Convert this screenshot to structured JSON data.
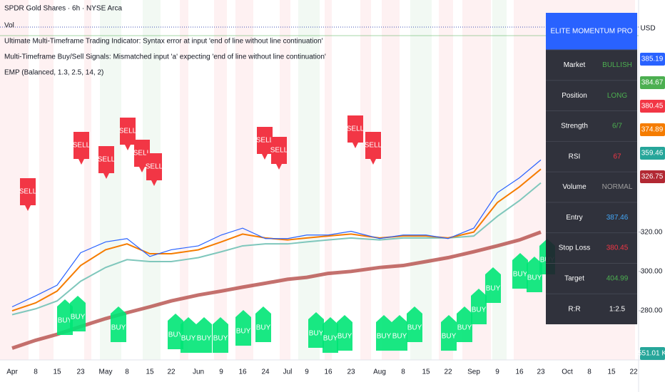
{
  "chart_data": {
    "type": "line",
    "title": "SPDR Gold Shares · 6h · NYSE Arca",
    "legend_lines": [
      "Vol",
      "Ultimate Multi-Timeframe Trading Indicator: Syntax error at input 'end of line without line continuation'",
      "Multi-Timeframe Buy/Sell Signals: Mismatched input 'a' expecting 'end of line without line continuation'",
      "EMP (Balanced, 1.3, 2.5, 14, 2)"
    ],
    "currency": "USD",
    "categories": [
      "Apr",
      "8",
      "15",
      "23",
      "May",
      "8",
      "15",
      "22",
      "Jun",
      "9",
      "16",
      "24",
      "Jul",
      "9",
      "16",
      "23",
      "Aug",
      "8",
      "15",
      "22",
      "Sep",
      "9",
      "16",
      "23",
      "Oct",
      "8",
      "15",
      "22"
    ],
    "ylim": [
      255,
      438
    ],
    "yticks": [
      {
        "value": 280,
        "label": "280.00"
      },
      {
        "value": 300,
        "label": "300.00"
      },
      {
        "value": 320,
        "label": "320.00"
      }
    ],
    "series": [
      {
        "color": "#b0413e",
        "values": [
          261,
          265,
          268,
          272,
          276,
          279,
          282,
          285,
          288,
          290,
          292,
          294,
          296,
          297,
          299,
          300,
          302,
          303,
          305,
          307,
          310,
          313,
          316,
          320,
          null,
          null,
          null,
          null
        ]
      },
      {
        "color": "#7fc7bc",
        "values": [
          278,
          281,
          285,
          295,
          302,
          306,
          305,
          305,
          307,
          310,
          313,
          314,
          314,
          315,
          316,
          317,
          316,
          317,
          317,
          317,
          318,
          328,
          336,
          345,
          null,
          null,
          null,
          null
        ]
      },
      {
        "color": "#f57c00",
        "values": [
          280,
          284,
          290,
          303,
          311,
          314,
          309,
          309,
          311,
          315,
          319,
          317,
          316,
          317,
          318,
          319,
          317,
          318,
          318,
          317,
          320,
          335,
          343,
          352,
          null,
          null,
          null,
          null
        ]
      },
      {
        "color": "#2962ff",
        "values": [
          282,
          287.6,
          293,
          309.5,
          315,
          316.7,
          307.6,
          311,
          313,
          318.5,
          322,
          316.7,
          316.7,
          318.5,
          318.5,
          320.4,
          316.7,
          318.5,
          318.5,
          316.7,
          322,
          340,
          347.6,
          356.7,
          null,
          null,
          null,
          null
        ]
      }
    ],
    "price_labels": [
      {
        "value": 385.19,
        "color": "#2962ff"
      },
      {
        "value": 384.67,
        "color": "#4caf50"
      },
      {
        "value": 380.45,
        "color": "#f23645"
      },
      {
        "value": 374.89,
        "color": "#f57c00"
      },
      {
        "value": 359.46,
        "color": "#26a69a"
      },
      {
        "value": 326.75,
        "color": "#b22833"
      }
    ],
    "volume_label": {
      "value": 551010,
      "label": "551.01 K"
    },
    "sell_signals": [
      "SELL",
      "SELL",
      "SELL",
      "SELL",
      "SELL",
      "SELL",
      "SELL",
      "SELL",
      "SELL",
      "SELL"
    ],
    "buy_signals": [
      "BUY",
      "BUY",
      "BUY",
      "BUY",
      "BUY",
      "BUY",
      "BUY",
      "BUY",
      "BUY",
      "BUY",
      "BUY",
      "BUY",
      "BUY",
      "BUY",
      "BUY",
      "BUY",
      "BUY",
      "BUY",
      "BUY",
      "BUY",
      "BUY",
      "BUY"
    ]
  },
  "panel": {
    "title": "ELITE MOMENTUM PRO",
    "rows": [
      {
        "label": "Market",
        "value": "BULLISH",
        "color": "#4caf50"
      },
      {
        "label": "Position",
        "value": "LONG",
        "color": "#4caf50"
      },
      {
        "label": "Strength",
        "value": "6/7",
        "color": "#4caf50"
      },
      {
        "label": "RSI",
        "value": "67",
        "color": "#f23645"
      },
      {
        "label": "Volume",
        "value": "NORMAL",
        "color": "#9e9e9e"
      },
      {
        "label": "Entry",
        "value": "387.46",
        "color": "#42a5f5"
      },
      {
        "label": "Stop Loss",
        "value": "380.45",
        "color": "#f23645"
      },
      {
        "label": "Target",
        "value": "404.99",
        "color": "#4caf50"
      },
      {
        "label": "R:R",
        "value": "1:2.5",
        "color": "#ffffff"
      }
    ]
  }
}
